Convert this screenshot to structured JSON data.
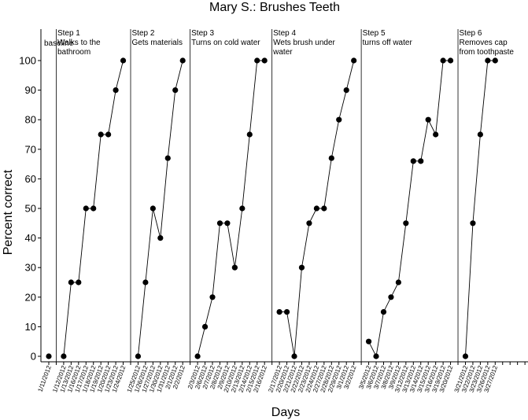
{
  "chart_data": {
    "type": "line",
    "title": "Mary S.: Brushes Teeth",
    "xlabel": "Days",
    "ylabel": "Percent correct",
    "ylim": [
      0,
      100
    ],
    "yticks": [
      0,
      10,
      20,
      30,
      40,
      50,
      60,
      70,
      80,
      90,
      100
    ],
    "grid": false,
    "legend": "none",
    "marker_color": "#000000",
    "x": [
      "1/11/2012",
      "",
      "1/12/2012",
      "1/13/2012",
      "1/16/2012",
      "1/17/2012",
      "1/18/2012",
      "1/19/2012",
      "1/20/2012",
      "1/23/2012",
      "1/24/2012",
      "",
      "1/25/2012",
      "1/26/2012",
      "1/27/2012",
      "1/30/2012",
      "1/31/2012",
      "2/1/2012",
      "2/2/2012",
      "",
      "2/3/2012",
      "2/6/2012",
      "2/7/2012",
      "2/8/2012",
      "2/9/2012",
      "2/10/2012",
      "2/13/2012",
      "2/14/2012",
      "2/15/2012",
      "2/16/2012",
      "",
      "2/17/2012",
      "2/20/2012",
      "2/21/2012",
      "2/22/2012",
      "2/23/2012",
      "2/24/2012",
      "2/27/2012",
      "2/28/2012",
      "2/29/2012",
      "3/1/2012",
      "3/2/2012",
      "",
      "3/5/2012",
      "3/6/2012",
      "3/7/2012",
      "3/8/2012",
      "3/9/2012",
      "3/12/2012",
      "3/13/2012",
      "3/14/2012",
      "3/15/2012",
      "3/16/2012",
      "3/19/2012",
      "3/20/2012",
      "",
      "3/21/2012",
      "3/22/2012",
      "3/23/2012",
      "3/26/2012",
      "3/27/2012",
      "",
      "",
      "",
      "",
      "",
      "",
      ""
    ],
    "phases": [
      {
        "label": [
          "baseline"
        ],
        "start": 0,
        "end": 0
      },
      {
        "label": [
          "Step 1",
          "Walks to the",
          "bathroom"
        ],
        "start": 2,
        "end": 10
      },
      {
        "label": [
          "Step 2",
          "Gets materials"
        ],
        "start": 12,
        "end": 18
      },
      {
        "label": [
          "Step 3",
          "Turns on cold water"
        ],
        "start": 20,
        "end": 29
      },
      {
        "label": [
          "Step 4",
          "Wets brush under",
          "water"
        ],
        "start": 31,
        "end": 41
      },
      {
        "label": [
          "Step 5",
          "turns off water"
        ],
        "start": 43,
        "end": 54
      },
      {
        "label": [
          "Step 6",
          "Removes cap",
          "from toothpaste"
        ],
        "start": 56,
        "end": 60
      }
    ],
    "series": [
      {
        "values": [
          0,
          null,
          0,
          25,
          25,
          50,
          50,
          75,
          75,
          90,
          100,
          null,
          0,
          25,
          50,
          40,
          67,
          90,
          100,
          null,
          0,
          10,
          20,
          45,
          45,
          30,
          50,
          75,
          100,
          100,
          null,
          15,
          15,
          0,
          30,
          45,
          50,
          50,
          67,
          80,
          90,
          100,
          null,
          5,
          0,
          15,
          20,
          25,
          45,
          66,
          66,
          80,
          75,
          100,
          100,
          null,
          0,
          45,
          75,
          100,
          100,
          null,
          null,
          null,
          null,
          null,
          null,
          null
        ]
      }
    ]
  }
}
